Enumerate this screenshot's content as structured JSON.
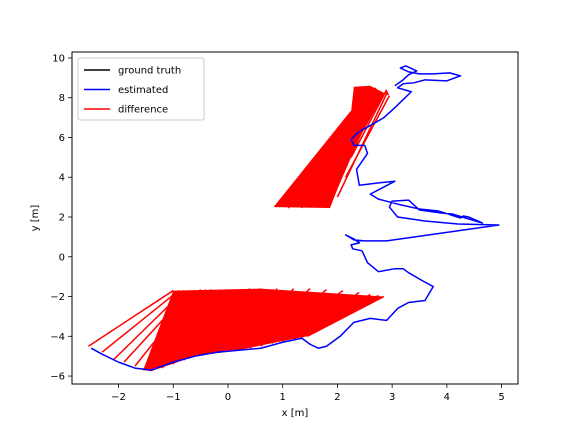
{
  "chart_data": {
    "type": "line",
    "title": "",
    "xlabel": "x [m]",
    "ylabel": "y [m]",
    "xlim": [
      -2.85,
      5.3
    ],
    "ylim": [
      -6.4,
      10.3
    ],
    "xticks": [
      -2,
      -1,
      0,
      1,
      2,
      3,
      4,
      5
    ],
    "yticks": [
      -6,
      -4,
      -2,
      0,
      2,
      4,
      6,
      8,
      10
    ],
    "grid": false,
    "legend_position": "top-left",
    "legend": [
      "ground truth",
      "estimated",
      "difference"
    ],
    "colors": {
      "ground_truth": "#000000",
      "estimated": "#0000ff",
      "difference": "#ff0000"
    },
    "series": [
      {
        "name": "ground truth",
        "x": [
          -2.6,
          -2.2,
          -1.8,
          -1.5,
          -1.0,
          -0.5,
          0.3,
          1.0,
          1.5,
          2.0,
          2.8,
          1.8,
          1.0
        ],
        "y": [
          -4.5,
          -4.8,
          -5.2,
          -5.7,
          -5.4,
          -4.9,
          -4.7,
          -4.2,
          -3.9,
          -3.5,
          -2.0,
          2.5,
          2.5
        ]
      },
      {
        "name": "estimated",
        "x": [
          -2.5,
          -2.3,
          -2.0,
          -1.7,
          -1.4,
          -1.0,
          -0.6,
          -0.2,
          0.2,
          0.6,
          1.0,
          1.35,
          1.5,
          1.65,
          1.8,
          2.05,
          2.3,
          2.6,
          2.9,
          3.1,
          3.3,
          3.6,
          3.75,
          3.55,
          3.3,
          3.2,
          3.05,
          2.75,
          2.55,
          2.45,
          2.28,
          2.25,
          2.4,
          2.3,
          2.15,
          2.3,
          2.5,
          2.9,
          4.95,
          4.2,
          3.6,
          3.1,
          2.95,
          3.0,
          3.3,
          3.5,
          3.9,
          4.1,
          4.4,
          4.65,
          4.4,
          4.3,
          4.25,
          3.85,
          3.5,
          3.1,
          2.75,
          2.6,
          3.05,
          2.7,
          2.4,
          2.35,
          2.55,
          2.5,
          2.3,
          2.25,
          2.4,
          2.6,
          2.85,
          3.05,
          3.2,
          3.35,
          3.1,
          3.2,
          3.4,
          3.6,
          4.0,
          4.25,
          4.05,
          3.75,
          3.5,
          3.3,
          3.15,
          3.25,
          3.45,
          3.3,
          3.2,
          3.05
        ],
        "y": [
          -4.6,
          -4.9,
          -5.3,
          -5.6,
          -5.7,
          -5.3,
          -5.0,
          -4.8,
          -4.7,
          -4.6,
          -4.3,
          -4.1,
          -4.4,
          -4.6,
          -4.5,
          -4.0,
          -3.3,
          -3.1,
          -3.2,
          -2.6,
          -2.3,
          -2.2,
          -1.5,
          -1.2,
          -0.8,
          -0.6,
          -0.6,
          -0.75,
          -0.3,
          0.3,
          0.4,
          0.6,
          0.7,
          0.9,
          1.1,
          0.85,
          0.8,
          0.8,
          1.6,
          1.65,
          1.8,
          2.0,
          2.5,
          2.8,
          2.85,
          2.35,
          2.2,
          2.15,
          1.9,
          1.7,
          2.0,
          2.05,
          1.95,
          2.3,
          2.4,
          2.65,
          2.9,
          3.15,
          3.8,
          3.7,
          3.6,
          4.4,
          5.2,
          5.6,
          5.6,
          5.9,
          6.3,
          6.6,
          7.0,
          7.5,
          7.9,
          8.3,
          8.5,
          8.7,
          8.75,
          8.9,
          8.85,
          9.1,
          9.25,
          9.2,
          9.2,
          9.3,
          9.5,
          9.6,
          9.35,
          9.15,
          8.9,
          8.6
        ]
      }
    ],
    "difference_pairs": [
      [
        -2.55,
        -4.5,
        -1.0,
        -1.7
      ],
      [
        -2.3,
        -4.8,
        -0.9,
        -1.7
      ],
      [
        -2.1,
        -5.2,
        -0.8,
        -1.7
      ],
      [
        -1.9,
        -5.3,
        -0.7,
        -1.7
      ],
      [
        -1.7,
        -5.5,
        -0.6,
        -1.7
      ],
      [
        -1.55,
        -5.7,
        -0.5,
        -1.65
      ],
      [
        -1.4,
        -5.75,
        -0.4,
        -1.65
      ],
      [
        -1.2,
        -5.6,
        -0.3,
        -1.65
      ],
      [
        -1.0,
        -5.4,
        -0.15,
        -1.65
      ],
      [
        -0.8,
        -5.2,
        0.0,
        -1.65
      ],
      [
        -0.6,
        -5.0,
        0.2,
        -1.65
      ],
      [
        -0.4,
        -4.9,
        0.4,
        -1.6
      ],
      [
        -0.2,
        -4.8,
        0.6,
        -1.6
      ],
      [
        0.0,
        -4.75,
        0.9,
        -1.6
      ],
      [
        0.2,
        -4.7,
        1.2,
        -1.6
      ],
      [
        0.4,
        -4.6,
        1.5,
        -1.6
      ],
      [
        0.6,
        -4.5,
        1.8,
        -1.65
      ],
      [
        0.8,
        -4.35,
        2.1,
        -1.7
      ],
      [
        1.0,
        -4.25,
        2.4,
        -1.8
      ],
      [
        1.2,
        -4.15,
        2.6,
        -1.9
      ],
      [
        1.35,
        -4.05,
        2.75,
        -1.95
      ],
      [
        1.45,
        -4.0,
        2.85,
        -2.0
      ],
      [
        0.85,
        2.5,
        2.25,
        7.3
      ],
      [
        1.1,
        2.45,
        2.35,
        7.6
      ],
      [
        1.35,
        2.45,
        2.45,
        8.0
      ],
      [
        1.6,
        2.5,
        2.55,
        8.3
      ],
      [
        1.85,
        2.45,
        2.7,
        8.5
      ],
      [
        2.0,
        3.0,
        2.9,
        8.2
      ],
      [
        2.15,
        4.0,
        2.95,
        8.1
      ],
      [
        2.25,
        5.0,
        2.9,
        8.4
      ]
    ]
  }
}
